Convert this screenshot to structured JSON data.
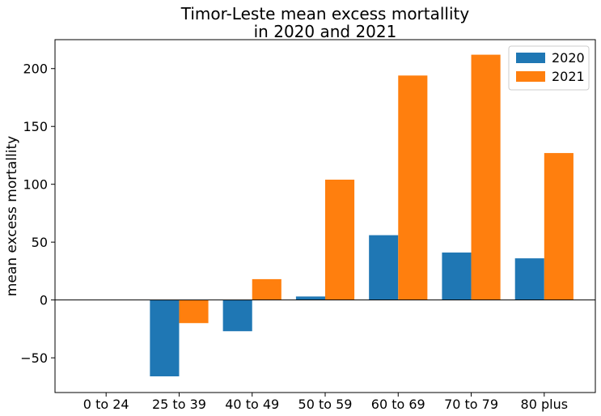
{
  "chart_data": {
    "type": "bar",
    "title_line1": "Timor-Leste mean excess mortallity",
    "title_line2": "in 2020 and 2021",
    "ylabel": "mean excess mortallity",
    "xlabel": "",
    "categories": [
      "0 to 24",
      "25 to 39",
      "40 to 49",
      "50 to 59",
      "60 to 69",
      "70 to 79",
      "80 plus"
    ],
    "series": [
      {
        "name": "2020",
        "color": "#1f77b4",
        "values": [
          0,
          -66,
          -27,
          3,
          56,
          41,
          36
        ]
      },
      {
        "name": "2021",
        "color": "#ff7f0e",
        "values": [
          0,
          -20,
          18,
          104,
          194,
          212,
          127
        ]
      }
    ],
    "ylim": [
      -80,
      225
    ],
    "yticks": [
      -50,
      0,
      50,
      100,
      150,
      200
    ],
    "ytick_labels": [
      "−50",
      "0",
      "50",
      "100",
      "150",
      "200"
    ],
    "legend_position": "top-right",
    "grid": false
  }
}
